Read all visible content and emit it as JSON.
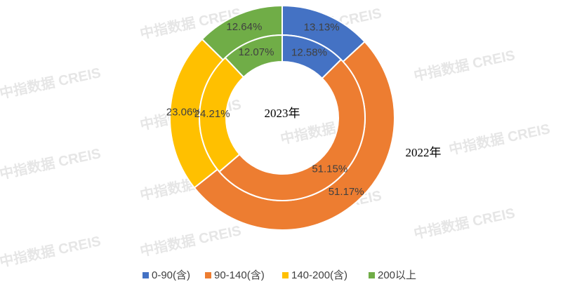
{
  "chart_data": {
    "type": "donut",
    "watermark": "中指数据 CREIS",
    "categories": [
      "0-90(含)",
      "90-140(含)",
      "140-200(含)",
      "200以上"
    ],
    "colors": [
      "#4472c4",
      "#ed7d31",
      "#ffc000",
      "#70ad47"
    ],
    "series": [
      {
        "name": "2022年",
        "values": [
          13.13,
          51.17,
          23.06,
          12.64
        ],
        "value_labels": [
          "13.13%",
          "51.17%",
          "23.06%",
          "12.64%"
        ]
      },
      {
        "name": "2023年",
        "values": [
          12.58,
          51.15,
          24.21,
          12.07
        ],
        "value_labels": [
          "12.58%",
          "51.15%",
          "24.21%",
          "12.07%"
        ]
      }
    ]
  }
}
